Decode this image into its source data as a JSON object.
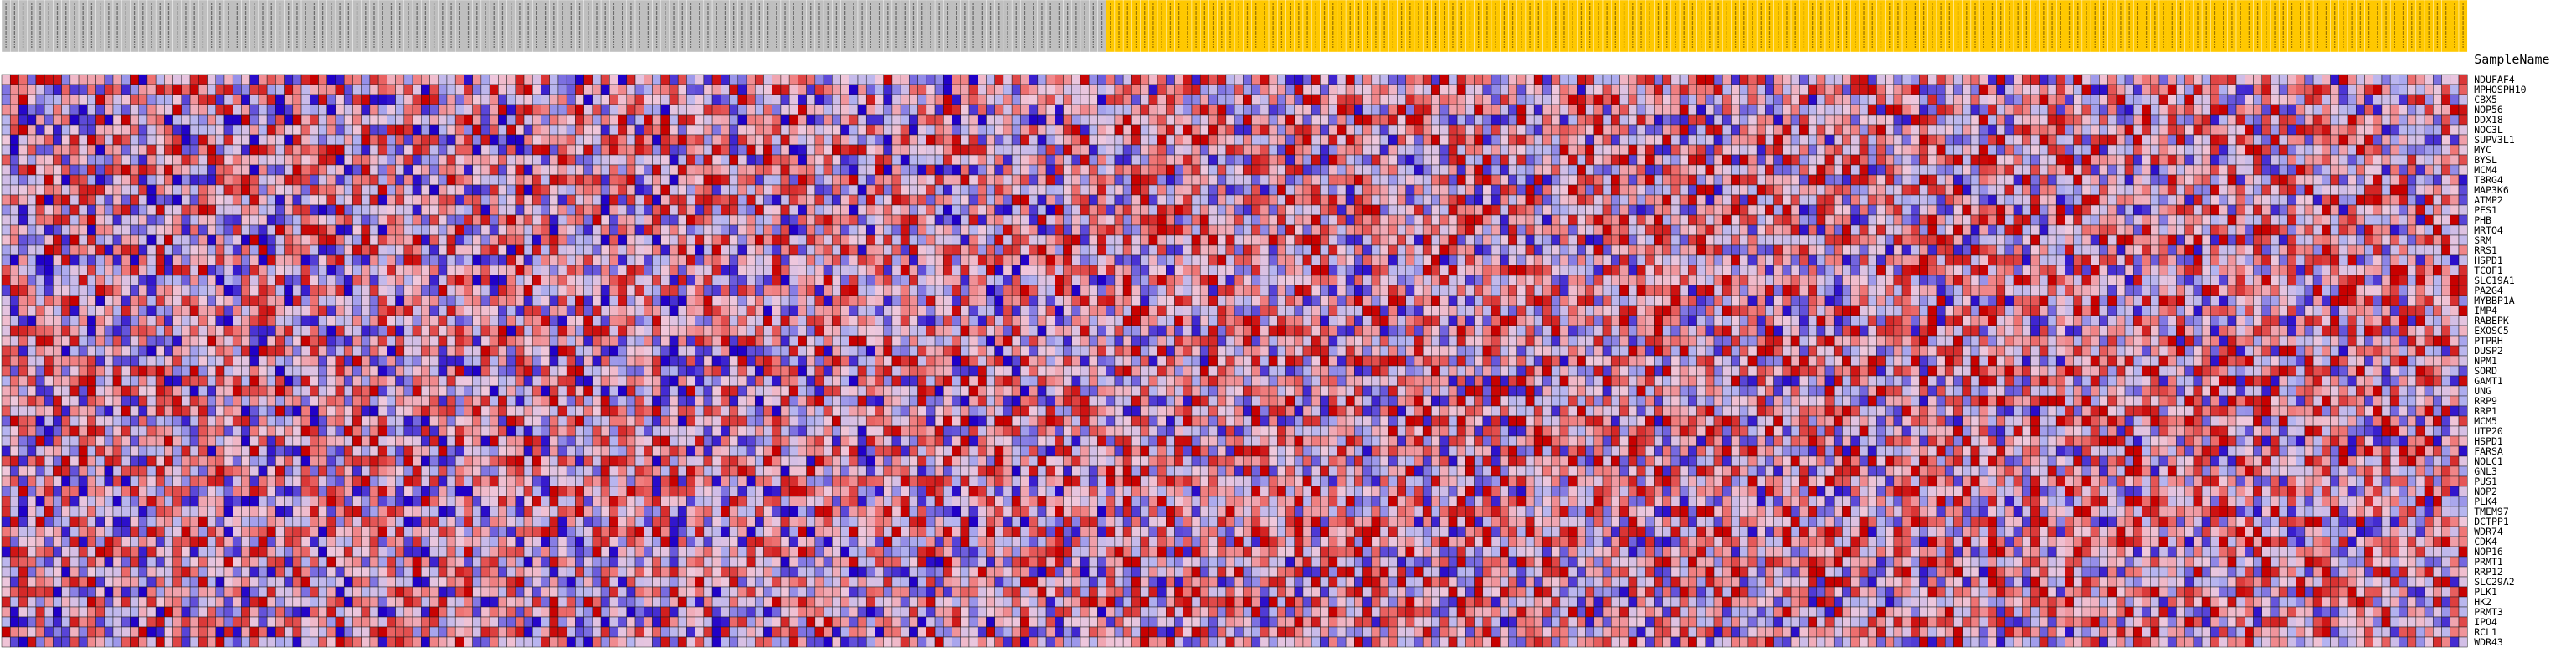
{
  "chart_data": {
    "type": "heatmap",
    "title": "",
    "sample_name_label": "SampleName",
    "n_columns": 288,
    "n_group_a": 129,
    "group_colors": {
      "group_a": "#bfbfbf",
      "group_b": "#ffc800"
    },
    "row_labels": [
      "NDUFAF4",
      "MPHOSPH10",
      "CBX5",
      "NOP56",
      "DDX18",
      "NOC3L",
      "SUPV3L1",
      "MYC",
      "BYSL",
      "MCM4",
      "TBRG4",
      "MAP3K6",
      "ATMP2",
      "PES1",
      "PHB",
      "MRTO4",
      "SRM",
      "RRS1",
      "HSPD1",
      "TCOF1",
      "SLC19A1",
      "PA2G4",
      "MYBBP1A",
      "IMP4",
      "RABEPK",
      "EXOSC5",
      "PTPRH",
      "DUSP2",
      "NPM1",
      "SORD",
      "GAMT1",
      "UNG",
      "RRP9",
      "RRP1",
      "MCM5",
      "UTP20",
      "HSPD1",
      "FARSA",
      "NOLC1",
      "GNL3",
      "PUS1",
      "NOP2",
      "PLK4",
      "TMEM97",
      "DCTPP1",
      "WDR74",
      "CDK4",
      "NOP16",
      "PRMT1",
      "RRP12",
      "SLC29A2",
      "PLK1",
      "HK2",
      "PRMT3",
      "IPO4",
      "RCL1",
      "WDR43"
    ],
    "cells_note": "Each cell is a standardized expression value on a blue (low) to red (high) scale; values are ~random matrix, generated deterministically below.",
    "color_scale": {
      "low": "#2000c8",
      "mid_low": "#b4b4f0",
      "mid": "#f0c8dc",
      "mid_high": "#f07878",
      "high": "#c80000"
    },
    "seed": 20240601
  }
}
